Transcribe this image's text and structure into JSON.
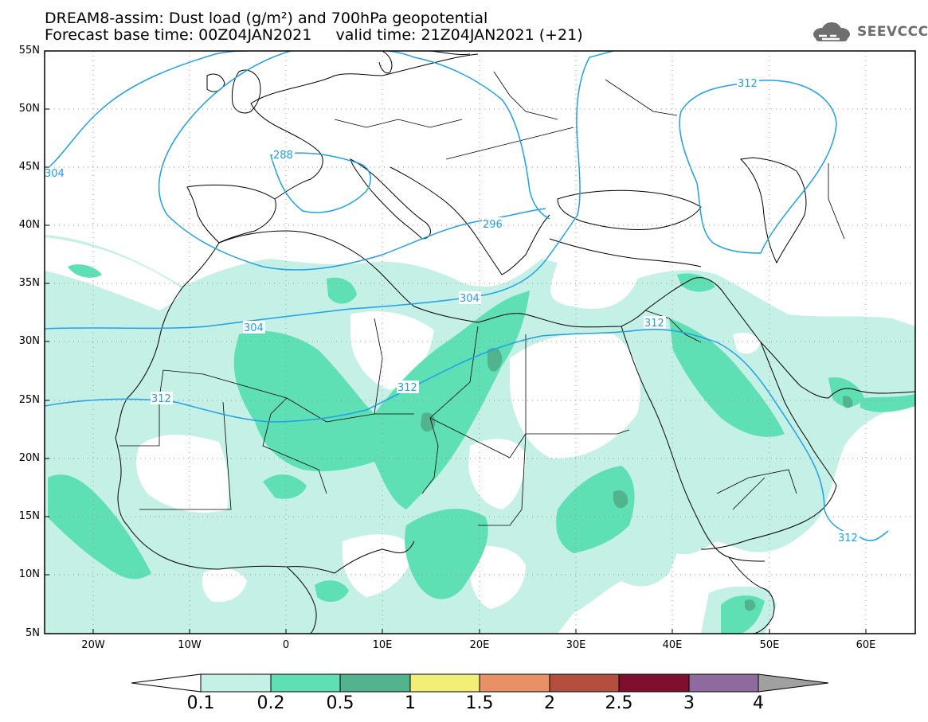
{
  "title": {
    "line1": "DREAM8-assim: Dust load (g/m²) and 700hPa geopotential",
    "line2": "Forecast base time: 00Z04JAN2021     valid time: 21Z04JAN2021 (+21)"
  },
  "logo": {
    "text": "SEEVCCC",
    "icon": "cloud-icon"
  },
  "map": {
    "lat_labels": [
      "55N",
      "50N",
      "45N",
      "40N",
      "35N",
      "30N",
      "25N",
      "20N",
      "15N",
      "10N",
      "5N"
    ],
    "lon_labels": [
      "20W",
      "10W",
      "0",
      "10E",
      "20E",
      "30E",
      "40E",
      "50E",
      "60E"
    ],
    "contour_labels": [
      "304",
      "288",
      "296",
      "312",
      "304",
      "304",
      "312",
      "312",
      "312",
      "312"
    ]
  },
  "colorbar": {
    "colors": [
      "#ffffff",
      "#c4f0e6",
      "#5fe0b4",
      "#52b48f",
      "#f3ee76",
      "#ea9066",
      "#b54e3f",
      "#7f0f2c",
      "#8e6a9e",
      "#a0a0a0"
    ],
    "labels": [
      "0.1",
      "0.2",
      "0.5",
      "1",
      "1.5",
      "2",
      "2.5",
      "3",
      "4"
    ]
  }
}
